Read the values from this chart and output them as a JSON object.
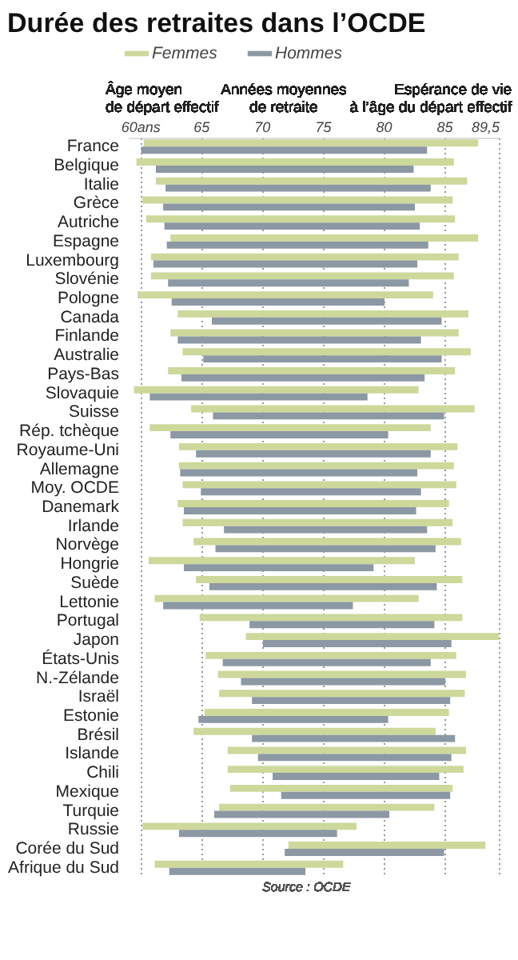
{
  "chart_data": {
    "type": "bar",
    "orientation": "horizontal",
    "title": "Durée des retraites dans l’OCDE",
    "categories": [
      "France",
      "Belgique",
      "Italie",
      "Grèce",
      "Autriche",
      "Espagne",
      "Luxembourg",
      "Slovénie",
      "Pologne",
      "Canada",
      "Finlande",
      "Australie",
      "Pays-Bas",
      "Slovaquie",
      "Suisse",
      "Rép. tchèque",
      "Royaume-Uni",
      "Allemagne",
      "Moy. OCDE",
      "Danemark",
      "Irlande",
      "Norvège",
      "Hongrie",
      "Suède",
      "Lettonie",
      "Portugal",
      "Japon",
      "États-Unis",
      "N.-Zélande",
      "Israël",
      "Estonie",
      "Brésil",
      "Islande",
      "Chili",
      "Mexique",
      "Turquie",
      "Russie",
      "Corée du Sud",
      "Afrique du Sud"
    ],
    "series": [
      {
        "name": "Femmes",
        "color": "#cdd89b",
        "base": [
          60.3,
          59.7,
          61.3,
          60.2,
          60.5,
          62.5,
          60.9,
          60.9,
          59.8,
          63.1,
          62.5,
          63.5,
          62.3,
          59.5,
          64.2,
          60.8,
          63.2,
          63.2,
          63.5,
          63.1,
          63.5,
          64.4,
          60.7,
          64.6,
          61.2,
          64.9,
          68.7,
          65.4,
          66.4,
          66.5,
          65.3,
          64.4,
          67.2,
          67.2,
          67.4,
          66.5,
          60.2,
          72.2,
          61.2
        ],
        "values": [
          27.5,
          26.1,
          25.6,
          25.5,
          25.4,
          25.3,
          25.3,
          24.9,
          24.3,
          23.9,
          23.7,
          23.7,
          23.6,
          23.4,
          23.3,
          23.1,
          22.9,
          22.6,
          22.5,
          22.3,
          22.2,
          22.0,
          21.9,
          21.9,
          21.7,
          21.6,
          20.8,
          20.6,
          20.4,
          20.2,
          20.1,
          19.9,
          19.6,
          19.4,
          18.3,
          17.7,
          17.6,
          16.2,
          15.5
        ]
      },
      {
        "name": "Hommes",
        "color": "#8c98a4",
        "base": [
          60.1,
          61.3,
          62.1,
          61.9,
          62.0,
          62.2,
          61.1,
          62.3,
          62.6,
          65.9,
          63.1,
          65.2,
          63.4,
          60.8,
          66.0,
          62.5,
          64.6,
          63.3,
          65.0,
          63.6,
          66.9,
          66.2,
          63.6,
          65.7,
          61.9,
          69.0,
          70.1,
          66.8,
          68.3,
          69.2,
          64.8,
          69.2,
          69.7,
          70.9,
          71.6,
          66.1,
          63.2,
          71.9,
          62.4
        ],
        "values": [
          23.5,
          21.2,
          21.8,
          20.7,
          21.0,
          21.5,
          21.7,
          19.8,
          17.5,
          18.9,
          20.0,
          19.6,
          20.0,
          17.9,
          19.0,
          17.9,
          19.3,
          19.5,
          18.1,
          19.1,
          16.7,
          18.1,
          15.6,
          18.7,
          15.6,
          15.2,
          15.5,
          17.1,
          16.8,
          16.3,
          15.6,
          16.7,
          15.9,
          13.7,
          13.9,
          14.4,
          13.0,
          13.1,
          11.2
        ]
      }
    ],
    "xlim": [
      59,
      89.5
    ],
    "xticks": [
      {
        "value": 60,
        "label": "60ans"
      },
      65,
      70,
      75,
      80,
      85,
      {
        "value": 89.5,
        "label": "89,5"
      }
    ],
    "grid": "x",
    "legend": "top left",
    "annotations": [
      "Âge moyen\nde départ effectif",
      "Années moyennes\nde retraite",
      "Espérance de vie\nà l’âge du départ effectif",
      "Source : OCDE"
    ]
  }
}
